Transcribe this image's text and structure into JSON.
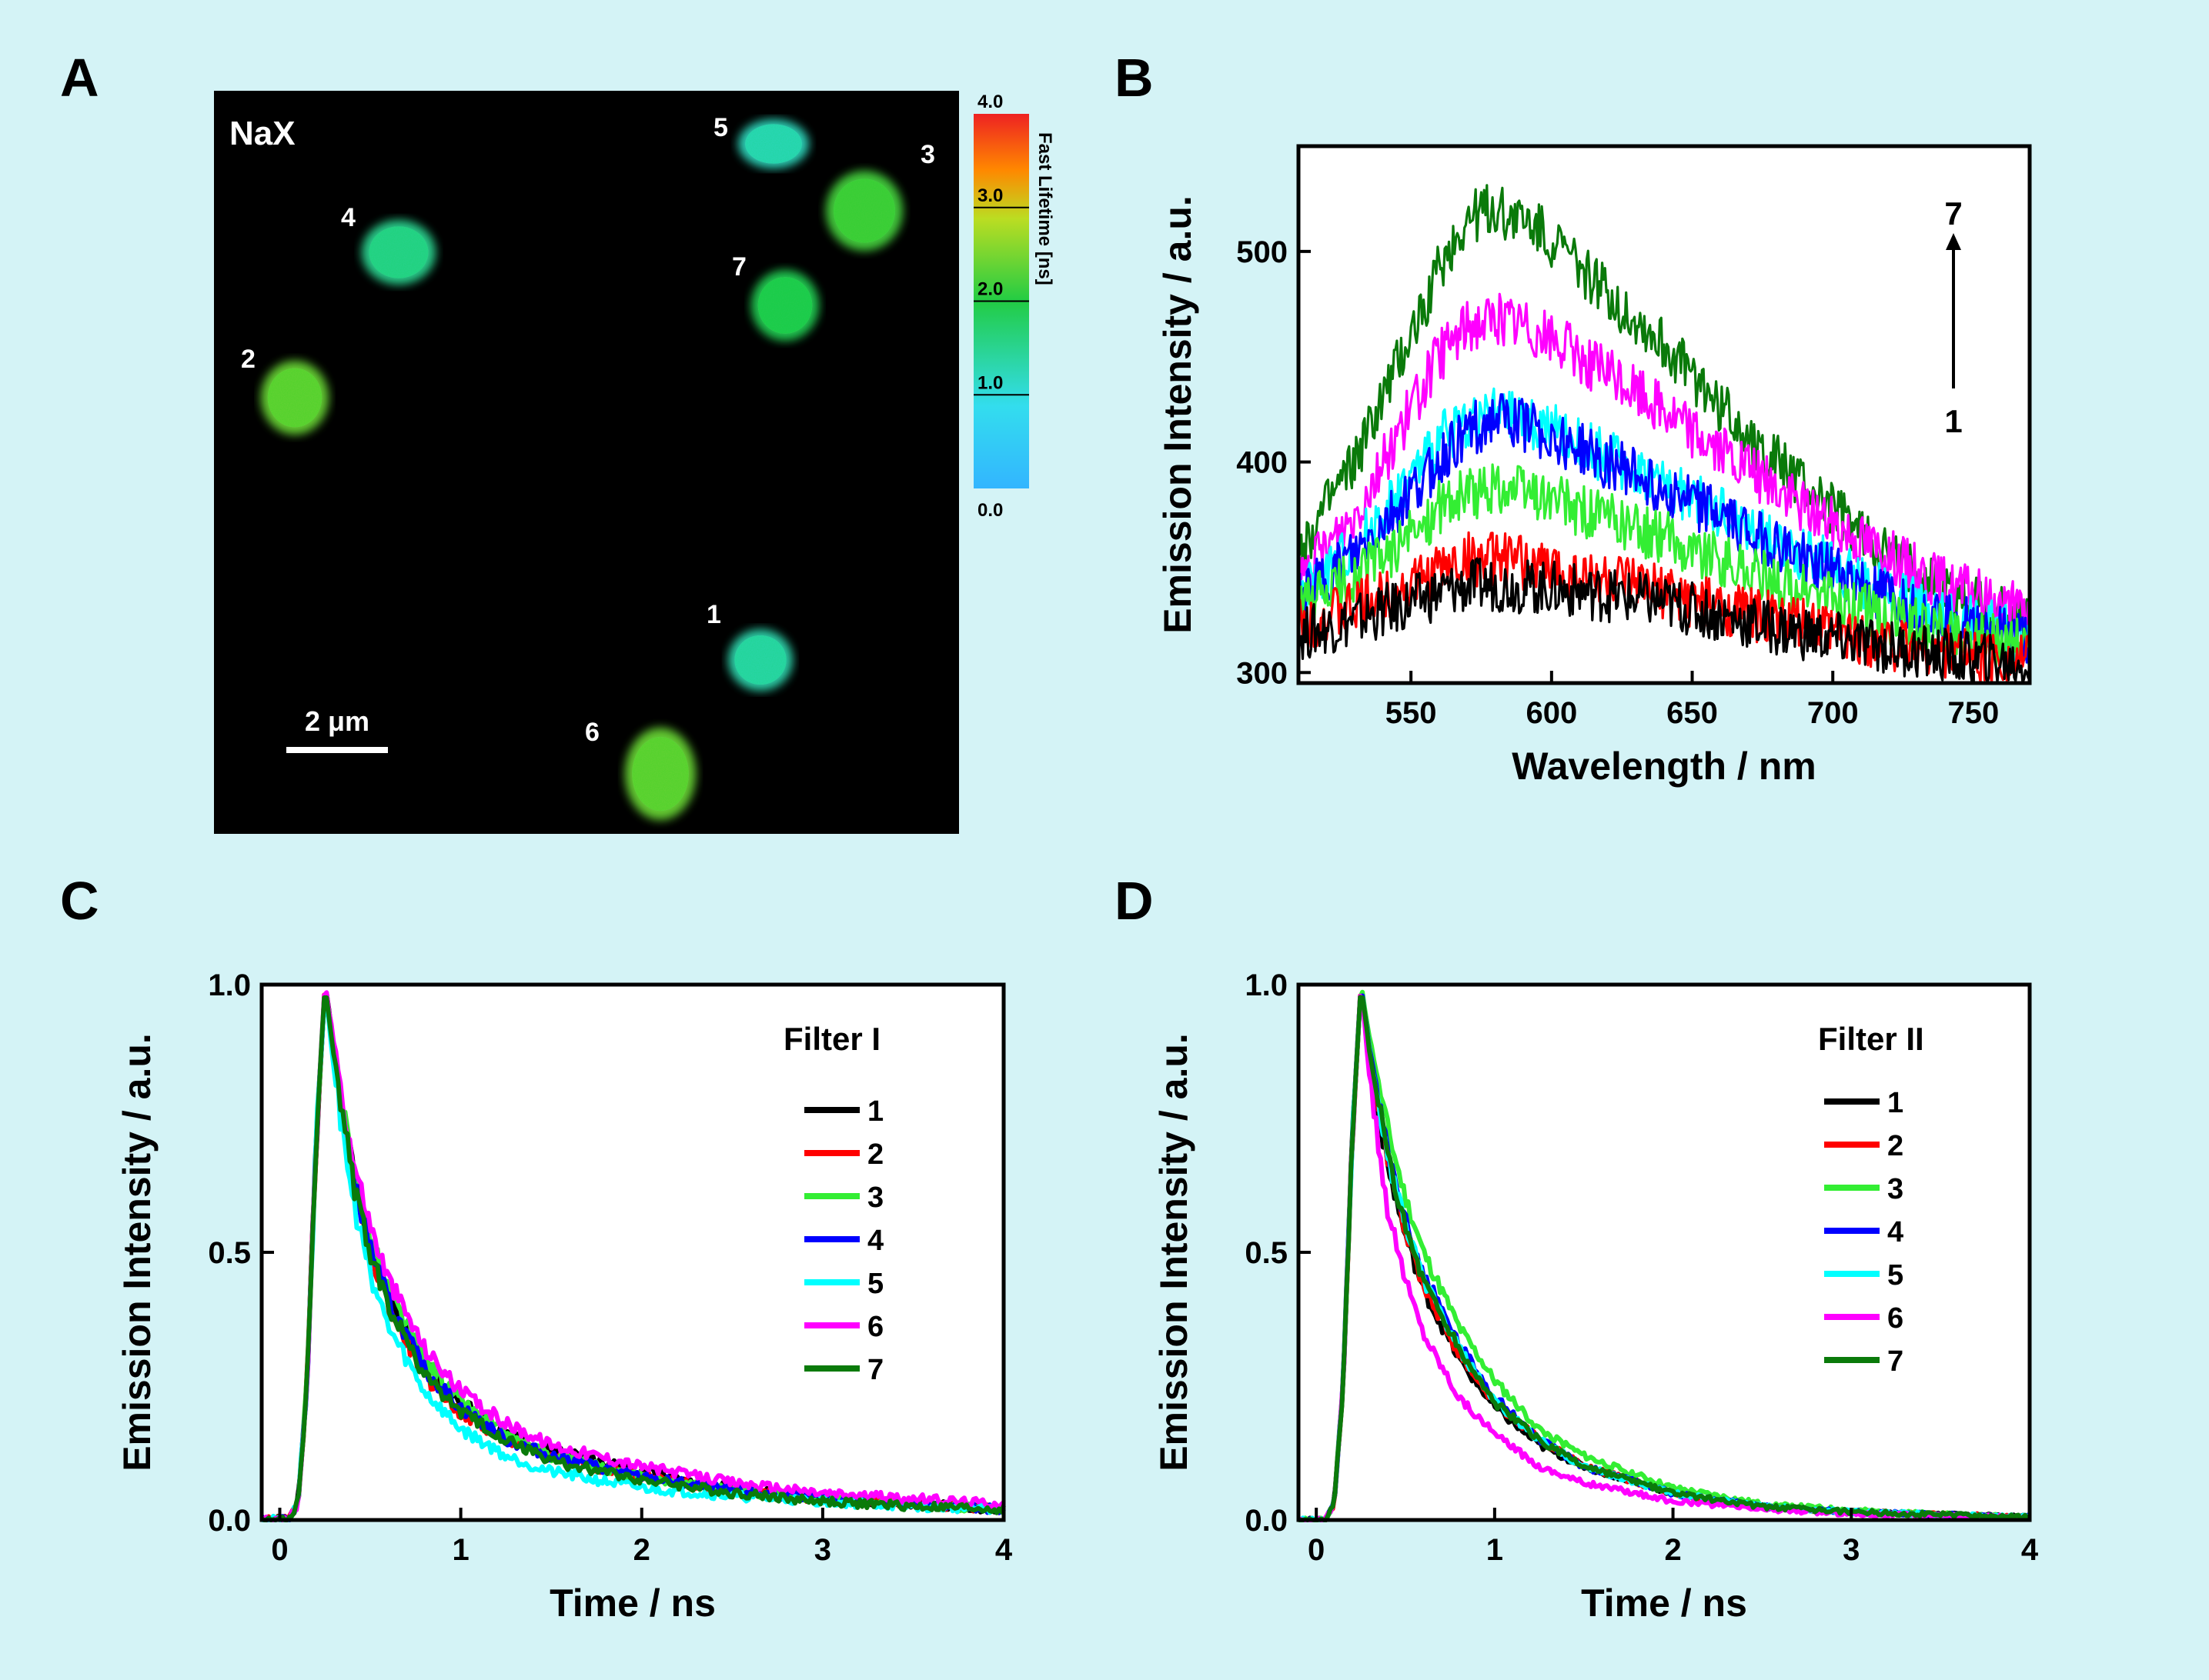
{
  "colors": {
    "background": "#d4f3f6",
    "series": {
      "1": "#000000",
      "2": "#ff0000",
      "3": "#33ee33",
      "4": "#0000ff",
      "5": "#00ffff",
      "6": "#ff00ff",
      "7": "#0a7a0a"
    }
  },
  "panel_A": {
    "letter": "A",
    "sample_label": "NaX",
    "scale_bar_label": "2 μm",
    "cells": [
      {
        "label": "1",
        "lifetime_ns": 1.3
      },
      {
        "label": "2",
        "lifetime_ns": 2.4
      },
      {
        "label": "3",
        "lifetime_ns": 2.2
      },
      {
        "label": "4",
        "lifetime_ns": 1.5
      },
      {
        "label": "5",
        "lifetime_ns": 1.2
      },
      {
        "label": "6",
        "lifetime_ns": 2.4
      },
      {
        "label": "7",
        "lifetime_ns": 1.9
      }
    ],
    "colorbar": {
      "title": "Fast Lifetime [ns]",
      "ticks": [
        "4.0",
        "3.0",
        "2.0",
        "1.0",
        "0.0"
      ],
      "range": [
        0,
        4
      ]
    }
  },
  "panel_B": {
    "letter": "B",
    "arrow_top": "7",
    "arrow_bottom": "1"
  },
  "panel_C": {
    "letter": "C",
    "legend_title": "Filter I"
  },
  "panel_D": {
    "letter": "D",
    "legend_title": "Filter II"
  },
  "chart_data": [
    {
      "panel": "B",
      "type": "line",
      "xlabel": "Wavelength / nm",
      "ylabel": "Emission Intensity / a.u.",
      "xlim": [
        510,
        770
      ],
      "ylim": [
        295,
        550
      ],
      "xticks": [
        550,
        600,
        650,
        700,
        750
      ],
      "yticks": [
        300,
        400,
        500
      ],
      "x": [
        510,
        530,
        550,
        560,
        570,
        580,
        590,
        600,
        620,
        640,
        660,
        680,
        700,
        720,
        740,
        760,
        770
      ],
      "series": [
        {
          "name": "1",
          "values": [
            318,
            325,
            333,
            338,
            341,
            342,
            341,
            340,
            337,
            333,
            327,
            321,
            316,
            312,
            308,
            305,
            304
          ]
        },
        {
          "name": "2",
          "values": [
            323,
            331,
            342,
            349,
            354,
            354,
            352,
            349,
            344,
            338,
            331,
            325,
            319,
            314,
            310,
            307,
            306
          ]
        },
        {
          "name": "3",
          "values": [
            330,
            345,
            365,
            378,
            385,
            388,
            386,
            382,
            373,
            364,
            353,
            343,
            334,
            326,
            319,
            314,
            312
          ]
        },
        {
          "name": "4",
          "values": [
            335,
            355,
            385,
            400,
            415,
            420,
            418,
            412,
            400,
            388,
            374,
            360,
            348,
            336,
            326,
            318,
            315
          ]
        },
        {
          "name": "5",
          "values": [
            336,
            360,
            392,
            410,
            420,
            422,
            420,
            415,
            402,
            390,
            376,
            362,
            350,
            338,
            328,
            320,
            317
          ]
        },
        {
          "name": "6",
          "values": [
            342,
            375,
            425,
            450,
            465,
            468,
            465,
            458,
            442,
            425,
            405,
            387,
            371,
            356,
            342,
            332,
            328
          ]
        },
        {
          "name": "7",
          "values": [
            357,
            400,
            460,
            492,
            515,
            520,
            515,
            505,
            480,
            455,
            427,
            400,
            377,
            355,
            339,
            329,
            325
          ]
        }
      ]
    },
    {
      "panel": "C",
      "type": "line",
      "xlabel": "Time / ns",
      "ylabel": "Emission Intensity / a.u.",
      "xlim": [
        -0.1,
        4
      ],
      "ylim": [
        0,
        1
      ],
      "xticks": [
        0,
        1,
        2,
        3,
        4
      ],
      "yticks": [
        0.0,
        0.5,
        1.0
      ],
      "legend": "right",
      "x": [
        -0.1,
        0.05,
        0.1,
        0.15,
        0.2,
        0.25,
        0.3,
        0.4,
        0.5,
        0.6,
        0.8,
        1.0,
        1.25,
        1.5,
        2.0,
        2.5,
        3.0,
        3.5,
        4.0
      ],
      "series": [
        {
          "name": "1",
          "values": [
            0,
            0,
            0.03,
            0.25,
            0.7,
            1.0,
            0.88,
            0.66,
            0.52,
            0.42,
            0.29,
            0.22,
            0.16,
            0.13,
            0.09,
            0.06,
            0.04,
            0.03,
            0.02
          ]
        },
        {
          "name": "2",
          "values": [
            0,
            0,
            0.03,
            0.25,
            0.7,
            1.0,
            0.87,
            0.64,
            0.5,
            0.4,
            0.27,
            0.2,
            0.15,
            0.12,
            0.08,
            0.055,
            0.04,
            0.03,
            0.02
          ]
        },
        {
          "name": "3",
          "values": [
            0,
            0,
            0.03,
            0.25,
            0.7,
            1.0,
            0.88,
            0.66,
            0.53,
            0.43,
            0.3,
            0.22,
            0.16,
            0.12,
            0.08,
            0.055,
            0.04,
            0.03,
            0.02
          ]
        },
        {
          "name": "4",
          "values": [
            0,
            0,
            0.03,
            0.25,
            0.7,
            1.0,
            0.87,
            0.65,
            0.51,
            0.41,
            0.28,
            0.21,
            0.15,
            0.12,
            0.08,
            0.055,
            0.04,
            0.03,
            0.02
          ]
        },
        {
          "name": "5",
          "values": [
            0,
            0,
            0.03,
            0.25,
            0.7,
            1.0,
            0.84,
            0.6,
            0.46,
            0.36,
            0.24,
            0.17,
            0.12,
            0.09,
            0.06,
            0.045,
            0.035,
            0.025,
            0.02
          ]
        },
        {
          "name": "6",
          "values": [
            0,
            0,
            0.03,
            0.25,
            0.7,
            1.0,
            0.89,
            0.68,
            0.55,
            0.45,
            0.32,
            0.24,
            0.18,
            0.14,
            0.1,
            0.07,
            0.05,
            0.04,
            0.03
          ]
        },
        {
          "name": "7",
          "values": [
            0,
            0,
            0.03,
            0.25,
            0.7,
            1.0,
            0.87,
            0.64,
            0.5,
            0.4,
            0.27,
            0.2,
            0.15,
            0.11,
            0.075,
            0.05,
            0.035,
            0.025,
            0.02
          ]
        }
      ]
    },
    {
      "panel": "D",
      "type": "line",
      "xlabel": "Time / ns",
      "ylabel": "Emission Intensity / a.u.",
      "xlim": [
        -0.1,
        4
      ],
      "ylim": [
        0,
        1
      ],
      "xticks": [
        0,
        1,
        2,
        3,
        4
      ],
      "yticks": [
        0.0,
        0.5,
        1.0
      ],
      "legend": "right",
      "x": [
        -0.1,
        0.05,
        0.1,
        0.15,
        0.2,
        0.25,
        0.3,
        0.4,
        0.5,
        0.6,
        0.8,
        1.0,
        1.25,
        1.5,
        2.0,
        2.5,
        3.0,
        3.5,
        4.0
      ],
      "series": [
        {
          "name": "1",
          "values": [
            0,
            0,
            0.03,
            0.25,
            0.7,
            1.0,
            0.86,
            0.66,
            0.53,
            0.43,
            0.3,
            0.21,
            0.14,
            0.1,
            0.05,
            0.025,
            0.015,
            0.01,
            0.005
          ]
        },
        {
          "name": "2",
          "values": [
            0,
            0,
            0.03,
            0.25,
            0.7,
            1.0,
            0.86,
            0.67,
            0.54,
            0.44,
            0.31,
            0.22,
            0.15,
            0.1,
            0.05,
            0.025,
            0.015,
            0.01,
            0.005
          ]
        },
        {
          "name": "3",
          "values": [
            0,
            0,
            0.03,
            0.25,
            0.7,
            1.0,
            0.9,
            0.73,
            0.6,
            0.5,
            0.36,
            0.26,
            0.17,
            0.12,
            0.06,
            0.03,
            0.018,
            0.01,
            0.005
          ]
        },
        {
          "name": "4",
          "values": [
            0,
            0,
            0.03,
            0.25,
            0.7,
            1.0,
            0.88,
            0.69,
            0.56,
            0.46,
            0.33,
            0.23,
            0.15,
            0.1,
            0.05,
            0.025,
            0.015,
            0.01,
            0.005
          ]
        },
        {
          "name": "5",
          "values": [
            0,
            0,
            0.03,
            0.25,
            0.7,
            1.0,
            0.87,
            0.68,
            0.55,
            0.45,
            0.32,
            0.22,
            0.15,
            0.1,
            0.05,
            0.025,
            0.015,
            0.01,
            0.005
          ]
        },
        {
          "name": "6",
          "values": [
            0,
            0,
            0.03,
            0.25,
            0.7,
            1.0,
            0.82,
            0.58,
            0.45,
            0.35,
            0.23,
            0.16,
            0.1,
            0.07,
            0.035,
            0.02,
            0.012,
            0.008,
            0.004
          ]
        },
        {
          "name": "7",
          "values": [
            0,
            0,
            0.03,
            0.25,
            0.7,
            1.0,
            0.87,
            0.68,
            0.55,
            0.45,
            0.32,
            0.22,
            0.15,
            0.1,
            0.05,
            0.025,
            0.015,
            0.01,
            0.005
          ]
        }
      ]
    }
  ]
}
